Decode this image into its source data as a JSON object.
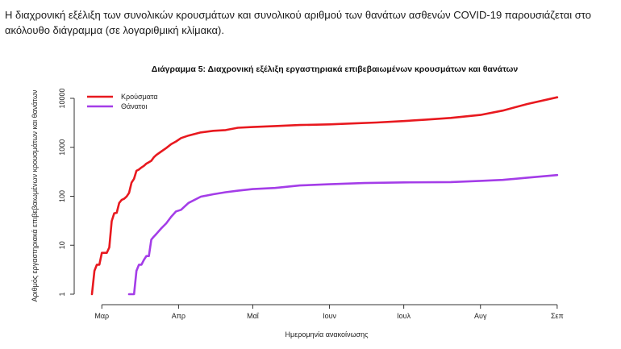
{
  "intro_text": "Η διαχρονική εξέλιξη των συνολικών κρουσμάτων και συνολικού αριθμού των θανάτων ασθενών COVID-19 παρουσιάζεται στο ακόλουθο διάγραμμα (σε λογαριθμική κλίμακα).",
  "chart_data": {
    "type": "line",
    "title": "Διάγραμμα 5: Διαχρονική εξέλιξη εργαστηριακά επιβεβαιωμένων κρουσμάτων και θανάτων",
    "xlabel": "Ημερομηνία ανακοίνωσης",
    "ylabel": "Αριθμός εργαστηριακά επιβεβαιωμένων κρουσμάτων και θανάτων",
    "yscale": "log",
    "ylim": [
      1,
      10000
    ],
    "yticks": [
      1,
      10,
      100,
      1000,
      10000
    ],
    "xlim": [
      "2020-02-26",
      "2020-09-03"
    ],
    "xticks": [
      {
        "date": "2020-03-01",
        "label": "Μαρ"
      },
      {
        "date": "2020-04-01",
        "label": "Απρ"
      },
      {
        "date": "2020-05-01",
        "label": "Μαΐ"
      },
      {
        "date": "2020-06-01",
        "label": "Ιουν"
      },
      {
        "date": "2020-07-01",
        "label": "Ιουλ"
      },
      {
        "date": "2020-08-01",
        "label": "Αυγ"
      },
      {
        "date": "2020-09-01",
        "label": "Σεπ"
      }
    ],
    "grid": false,
    "legend_position": "top-left",
    "series": [
      {
        "name": "Κρούσματα",
        "color": "#e8191f",
        "points": [
          [
            "2020-02-26",
            1
          ],
          [
            "2020-02-27",
            3
          ],
          [
            "2020-02-28",
            4
          ],
          [
            "2020-02-29",
            4
          ],
          [
            "2020-03-01",
            7
          ],
          [
            "2020-03-03",
            7
          ],
          [
            "2020-03-04",
            9
          ],
          [
            "2020-03-05",
            31
          ],
          [
            "2020-03-06",
            45
          ],
          [
            "2020-03-07",
            46
          ],
          [
            "2020-03-08",
            73
          ],
          [
            "2020-03-09",
            84
          ],
          [
            "2020-03-10",
            89
          ],
          [
            "2020-03-11",
            99
          ],
          [
            "2020-03-12",
            117
          ],
          [
            "2020-03-13",
            190
          ],
          [
            "2020-03-14",
            228
          ],
          [
            "2020-03-15",
            331
          ],
          [
            "2020-03-16",
            352
          ],
          [
            "2020-03-17",
            387
          ],
          [
            "2020-03-18",
            418
          ],
          [
            "2020-03-19",
            464
          ],
          [
            "2020-03-20",
            495
          ],
          [
            "2020-03-21",
            530
          ],
          [
            "2020-03-22",
            624
          ],
          [
            "2020-03-23",
            695
          ],
          [
            "2020-03-25",
            821
          ],
          [
            "2020-03-27",
            966
          ],
          [
            "2020-03-29",
            1156
          ],
          [
            "2020-03-31",
            1314
          ],
          [
            "2020-04-02",
            1544
          ],
          [
            "2020-04-05",
            1735
          ],
          [
            "2020-04-10",
            2011
          ],
          [
            "2020-04-15",
            2170
          ],
          [
            "2020-04-20",
            2245
          ],
          [
            "2020-04-25",
            2506
          ],
          [
            "2020-05-01",
            2591
          ],
          [
            "2020-05-10",
            2710
          ],
          [
            "2020-05-20",
            2850
          ],
          [
            "2020-06-01",
            2937
          ],
          [
            "2020-06-10",
            3068
          ],
          [
            "2020-06-20",
            3203
          ],
          [
            "2020-07-01",
            3432
          ],
          [
            "2020-07-10",
            3672
          ],
          [
            "2020-07-20",
            3983
          ],
          [
            "2020-08-01",
            4587
          ],
          [
            "2020-08-10",
            5623
          ],
          [
            "2020-08-20",
            7684
          ],
          [
            "2020-09-01",
            10524
          ]
        ]
      },
      {
        "name": "Θάνατοι",
        "color": "#a43de8",
        "points": [
          [
            "2020-03-12",
            1
          ],
          [
            "2020-03-14",
            1
          ],
          [
            "2020-03-15",
            3
          ],
          [
            "2020-03-16",
            4
          ],
          [
            "2020-03-17",
            4
          ],
          [
            "2020-03-18",
            5
          ],
          [
            "2020-03-19",
            6
          ],
          [
            "2020-03-20",
            6
          ],
          [
            "2020-03-21",
            13
          ],
          [
            "2020-03-22",
            15
          ],
          [
            "2020-03-23",
            17
          ],
          [
            "2020-03-25",
            22
          ],
          [
            "2020-03-27",
            28
          ],
          [
            "2020-03-29",
            38
          ],
          [
            "2020-03-31",
            49
          ],
          [
            "2020-04-02",
            53
          ],
          [
            "2020-04-05",
            73
          ],
          [
            "2020-04-10",
            98
          ],
          [
            "2020-04-15",
            110
          ],
          [
            "2020-04-20",
            121
          ],
          [
            "2020-04-25",
            130
          ],
          [
            "2020-05-01",
            140
          ],
          [
            "2020-05-10",
            148
          ],
          [
            "2020-05-20",
            166
          ],
          [
            "2020-06-01",
            176
          ],
          [
            "2020-06-15",
            186
          ],
          [
            "2020-07-01",
            192
          ],
          [
            "2020-07-20",
            195
          ],
          [
            "2020-08-01",
            206
          ],
          [
            "2020-08-10",
            216
          ],
          [
            "2020-08-20",
            240
          ],
          [
            "2020-09-01",
            271
          ]
        ]
      }
    ]
  }
}
